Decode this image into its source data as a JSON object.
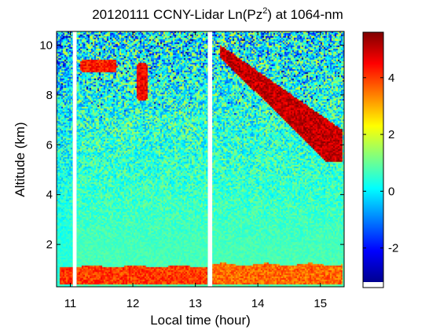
{
  "chart_data": {
    "type": "heatmap",
    "title_main": "20120111 CCNY-Lidar Ln(Pz",
    "title_sup": "2",
    "title_end": ") at 1064-nm",
    "xlabel": "Local time (hour)",
    "ylabel": "Altitude (km)",
    "xlim": [
      10.78,
      15.38
    ],
    "ylim": [
      0.3,
      10.55
    ],
    "x_ticks": [
      11,
      12,
      13,
      14,
      15
    ],
    "x_tick_labels": [
      "11",
      "12",
      "13",
      "14",
      "15"
    ],
    "y_ticks": [
      2,
      4,
      6,
      8,
      10
    ],
    "y_tick_labels": [
      "2",
      "4",
      "6",
      "8",
      "10"
    ],
    "colorbar": {
      "range": [
        -3.2,
        5.6
      ],
      "ticks": [
        -2,
        0,
        2,
        4
      ],
      "tick_labels": [
        "-2",
        "0",
        "2",
        "4"
      ],
      "colormap": "jet"
    },
    "background_value": 0.8,
    "data_gaps_hours": [
      [
        11.04,
        11.1
      ],
      [
        13.2,
        13.27
      ]
    ],
    "features": [
      {
        "feature": "boundary layer",
        "x": [
          10.82,
          13.2
        ],
        "altitude_km": [
          0.4,
          1.12
        ],
        "value": 4.0
      },
      {
        "feature": "boundary layer",
        "x": [
          13.27,
          15.35
        ],
        "altitude_km": [
          0.4,
          1.2
        ],
        "value": 3.6
      },
      {
        "feature": "cloud",
        "x": [
          11.15,
          11.75
        ],
        "altitude_km": [
          8.9,
          9.4
        ],
        "value": 4.3
      },
      {
        "feature": "cloud",
        "x": [
          12.05,
          12.25
        ],
        "altitude_km": [
          7.8,
          9.3
        ],
        "value": 4.6
      },
      {
        "feature": "cloud",
        "x": [
          13.4,
          15.35
        ],
        "altitude_km": [
          5.3,
          10.0
        ],
        "value": 5.0
      }
    ]
  }
}
